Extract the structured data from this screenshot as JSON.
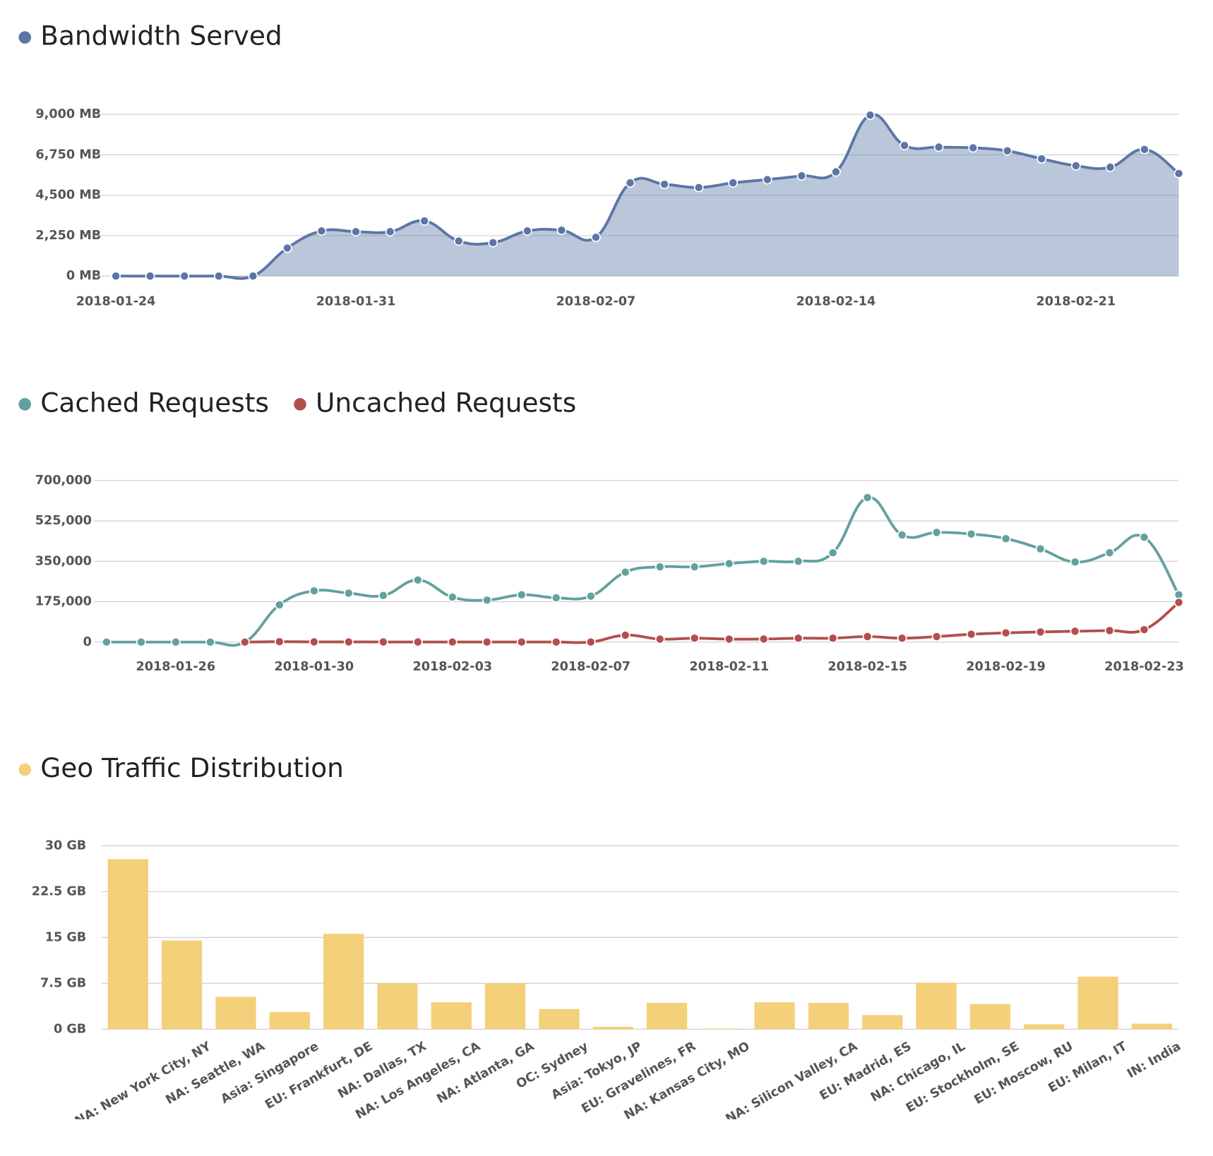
{
  "chart_data": [
    {
      "type": "area",
      "x": [
        "2018-01-24",
        "2018-01-25",
        "2018-01-26",
        "2018-01-27",
        "2018-01-28",
        "2018-01-29",
        "2018-01-30",
        "2018-01-31",
        "2018-02-01",
        "2018-02-02",
        "2018-02-03",
        "2018-02-04",
        "2018-02-05",
        "2018-02-06",
        "2018-02-07",
        "2018-02-08",
        "2018-02-09",
        "2018-02-10",
        "2018-02-11",
        "2018-02-12",
        "2018-02-13",
        "2018-02-14",
        "2018-02-15",
        "2018-02-16",
        "2018-02-17",
        "2018-02-18",
        "2018-02-19",
        "2018-02-20",
        "2018-02-21",
        "2018-02-22",
        "2018-02-23",
        "2018-02-24"
      ],
      "xticks": [
        "2018-01-24",
        "2018-01-31",
        "2018-02-07",
        "2018-02-14",
        "2018-02-21"
      ],
      "series": [
        {
          "name": "Bandwidth Served",
          "color": "#5b76a6",
          "values": [
            0,
            0,
            0,
            0,
            0,
            1560,
            2510,
            2470,
            2470,
            3070,
            1950,
            1860,
            2510,
            2550,
            2160,
            5190,
            5110,
            4930,
            5190,
            5370,
            5580,
            5800,
            8960,
            7270,
            7180,
            7140,
            6970,
            6530,
            6140,
            6060,
            7050,
            5710
          ]
        }
      ],
      "ylim": [
        0,
        9000
      ],
      "yticks": [
        {
          "value": 0,
          "label": "0 MB"
        },
        {
          "value": 2250,
          "label": "2,250 MB"
        },
        {
          "value": 4500,
          "label": "4,500 MB"
        },
        {
          "value": 6750,
          "label": "6,750 MB"
        },
        {
          "value": 9000,
          "label": "9,000 MB"
        }
      ],
      "grid": true
    },
    {
      "type": "line",
      "x": [
        "2018-01-24",
        "2018-01-25",
        "2018-01-26",
        "2018-01-27",
        "2018-01-28",
        "2018-01-29",
        "2018-01-30",
        "2018-01-31",
        "2018-02-01",
        "2018-02-02",
        "2018-02-03",
        "2018-02-04",
        "2018-02-05",
        "2018-02-06",
        "2018-02-07",
        "2018-02-08",
        "2018-02-09",
        "2018-02-10",
        "2018-02-11",
        "2018-02-12",
        "2018-02-13",
        "2018-02-14",
        "2018-02-15",
        "2018-02-16",
        "2018-02-17",
        "2018-02-18",
        "2018-02-19",
        "2018-02-20",
        "2018-02-21",
        "2018-02-22",
        "2018-02-23",
        "2018-02-24"
      ],
      "xticks": [
        "2018-01-26",
        "2018-01-30",
        "2018-02-03",
        "2018-02-07",
        "2018-02-11",
        "2018-02-15",
        "2018-02-19",
        "2018-02-23"
      ],
      "series": [
        {
          "name": "Cached Requests",
          "color": "#62a19e",
          "values": [
            0,
            0,
            0,
            0,
            0,
            161500,
            222000,
            212000,
            202000,
            269000,
            195000,
            182000,
            205000,
            192000,
            199000,
            303000,
            326000,
            326000,
            340000,
            350000,
            350000,
            387000,
            626000,
            464000,
            475000,
            468000,
            448000,
            404000,
            347000,
            387000,
            454000,
            205000
          ]
        },
        {
          "name": "Uncached Requests",
          "color": "#b24f4d",
          "values": [
            null,
            null,
            null,
            null,
            0,
            2000,
            1000,
            800,
            700,
            600,
            500,
            500,
            400,
            400,
            400,
            30000,
            13000,
            17000,
            13000,
            13500,
            17000,
            17000,
            24000,
            17000,
            24000,
            34000,
            40000,
            44000,
            47000,
            50000,
            54000,
            172000
          ]
        }
      ],
      "ylim": [
        0,
        700000
      ],
      "yticks": [
        0,
        {
          "value": 175000,
          "label": "175,000"
        },
        {
          "value": 350000,
          "label": "350,000"
        },
        {
          "value": 525000,
          "label": "525,000"
        },
        {
          "value": 700000,
          "label": "700,000"
        }
      ],
      "grid": true
    },
    {
      "type": "bar",
      "categories": [
        null,
        "NA: New York City, NY",
        "NA: Seattle, WA",
        "Asia: Singapore",
        "EU: Frankfurt, DE",
        "NA: Dallas, TX",
        "NA: Los Angeles, CA",
        "NA: Atlanta, GA",
        "OC: Sydney",
        "Asia: Tokyo, JP",
        "EU: Gravelines, FR",
        "NA: Kansas City, MO",
        null,
        "NA: Silicon Valley, CA",
        "EU: Madrid, ES",
        "NA: Chicago, IL",
        "EU: Stockholm, SE",
        "EU: Moscow, RU",
        "EU: Milan, IT",
        "IN: India"
      ],
      "series": [
        {
          "name": "Geo Traffic Distribution",
          "color": "#f5d07a",
          "values": [
            27.8,
            14.5,
            5.3,
            2.8,
            15.6,
            7.5,
            4.4,
            7.5,
            3.3,
            0.4,
            4.3,
            0.1,
            4.4,
            4.3,
            2.3,
            7.6,
            4.1,
            0.8,
            8.6,
            0.9
          ]
        }
      ],
      "ylim": [
        0,
        30
      ],
      "yticks": [
        {
          "value": 0,
          "label": "0 GB"
        },
        {
          "value": 7.5,
          "label": "7.5 GB"
        },
        {
          "value": 15,
          "label": "15 GB"
        },
        {
          "value": 22.5,
          "label": "22.5 GB"
        },
        {
          "value": 30,
          "label": "30 GB"
        }
      ],
      "grid": true
    }
  ]
}
